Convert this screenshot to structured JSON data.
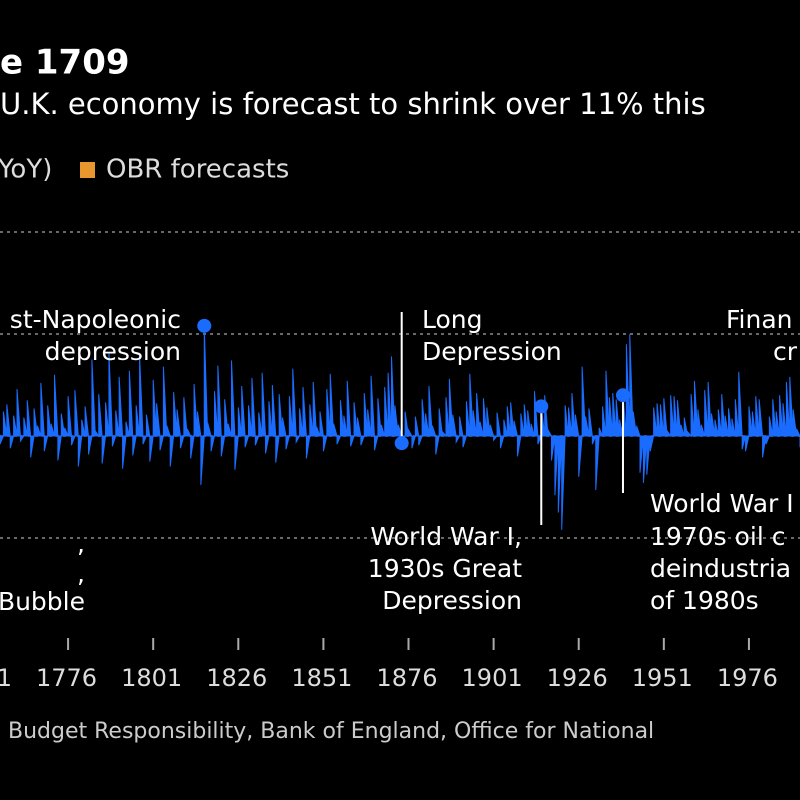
{
  "chart_data": {
    "type": "area",
    "title": "e 1709",
    "subtitle": "U.K. economy is forecast to shrink over 11% this",
    "source": "Budget Responsibility, Bank of England, Office for National",
    "legend": [
      {
        "name": "YoY)",
        "color": "#1a6cff"
      },
      {
        "name": "OBR forecasts",
        "color": "#e8962e"
      }
    ],
    "x": [
      1755,
      1756,
      1757,
      1758,
      1759,
      1760,
      1761,
      1762,
      1763,
      1764,
      1765,
      1766,
      1767,
      1768,
      1769,
      1770,
      1771,
      1772,
      1773,
      1774,
      1775,
      1776,
      1777,
      1778,
      1779,
      1780,
      1781,
      1782,
      1783,
      1784,
      1785,
      1786,
      1787,
      1788,
      1789,
      1790,
      1791,
      1792,
      1793,
      1794,
      1795,
      1796,
      1797,
      1798,
      1799,
      1800,
      1801,
      1802,
      1803,
      1804,
      1805,
      1806,
      1807,
      1808,
      1809,
      1810,
      1811,
      1812,
      1813,
      1814,
      1815,
      1816,
      1817,
      1818,
      1819,
      1820,
      1821,
      1822,
      1823,
      1824,
      1825,
      1826,
      1827,
      1828,
      1829,
      1830,
      1831,
      1832,
      1833,
      1834,
      1835,
      1836,
      1837,
      1838,
      1839,
      1840,
      1841,
      1842,
      1843,
      1844,
      1845,
      1846,
      1847,
      1848,
      1849,
      1850,
      1851,
      1852,
      1853,
      1854,
      1855,
      1856,
      1857,
      1858,
      1859,
      1860,
      1861,
      1862,
      1863,
      1864,
      1865,
      1866,
      1867,
      1868,
      1869,
      1870,
      1871,
      1872,
      1873,
      1874,
      1875,
      1876,
      1877,
      1878,
      1879,
      1880,
      1881,
      1882,
      1883,
      1884,
      1885,
      1886,
      1887,
      1888,
      1889,
      1890,
      1891,
      1892,
      1893,
      1894,
      1895,
      1896,
      1897,
      1898,
      1899,
      1900,
      1901,
      1902,
      1903,
      1904,
      1905,
      1906,
      1907,
      1908,
      1909,
      1910,
      1911,
      1912,
      1913,
      1914,
      1915,
      1916,
      1917,
      1918,
      1919,
      1920,
      1921,
      1922,
      1923,
      1924,
      1925,
      1926,
      1927,
      1928,
      1929,
      1930,
      1931,
      1932,
      1933,
      1934,
      1935,
      1936,
      1937,
      1938,
      1939,
      1940,
      1941,
      1942,
      1943,
      1944,
      1945,
      1946,
      1947,
      1948,
      1949,
      1950,
      1951,
      1952,
      1953,
      1954,
      1955,
      1956,
      1957,
      1958,
      1959,
      1960,
      1961,
      1962,
      1963,
      1964,
      1965,
      1966,
      1967,
      1968,
      1969,
      1970,
      1971,
      1972,
      1973,
      1974,
      1975,
      1976,
      1977,
      1978,
      1979,
      1980,
      1981,
      1982,
      1983,
      1984,
      1985,
      1986,
      1987,
      1988,
      1989,
      1990,
      1991
    ],
    "series": [
      {
        "name": "YoY)",
        "color": "#1a6cff",
        "values": [
          1.5,
          -0.8,
          2.4,
          3.1,
          -1.2,
          2.0,
          4.6,
          -0.5,
          1.8,
          3.5,
          -2.1,
          2.7,
          1.0,
          5.2,
          -1.5,
          3.0,
          1.2,
          6.0,
          -2.4,
          2.2,
          0.8,
          3.9,
          -0.9,
          4.5,
          -3.0,
          1.6,
          2.9,
          -1.8,
          7.5,
          0.5,
          4.1,
          -2.7,
          3.3,
          8.2,
          -1.0,
          2.5,
          5.8,
          -3.2,
          1.4,
          6.4,
          -1.9,
          3.0,
          7.9,
          -0.8,
          2.1,
          -2.5,
          5.5,
          3.2,
          -1.4,
          6.8,
          1.0,
          -3.0,
          4.3,
          2.6,
          -1.2,
          3.8,
          0.7,
          -2.2,
          5.1,
          2.4,
          -4.8,
          10.8,
          1.3,
          -1.5,
          4.4,
          6.9,
          -2.0,
          3.6,
          1.2,
          7.4,
          -3.3,
          2.8,
          4.9,
          -1.1,
          3.0,
          5.7,
          -0.9,
          2.3,
          6.2,
          -1.7,
          3.4,
          5.0,
          -2.6,
          4.1,
          1.8,
          -1.3,
          3.9,
          6.6,
          -0.6,
          2.7,
          4.8,
          -2.2,
          3.1,
          5.3,
          0.9,
          2.4,
          -1.5,
          4.6,
          6.1,
          1.2,
          -0.8,
          3.5,
          2.0,
          5.4,
          -1.0,
          3.3,
          1.8,
          -0.9,
          4.2,
          2.6,
          5.9,
          -1.4,
          3.7,
          1.1,
          4.8,
          6.2,
          7.8,
          3.0,
          1.1,
          -0.7,
          2.4,
          0.6,
          -1.2,
          1.9,
          -0.9,
          3.6,
          2.2,
          4.9,
          1.0,
          -1.8,
          2.7,
          0.4,
          3.8,
          5.6,
          2.1,
          -0.6,
          1.9,
          -1.1,
          3.4,
          6.1,
          2.5,
          4.2,
          1.4,
          3.7,
          2.8,
          1.1,
          -0.4,
          2.3,
          -1.2,
          1.6,
          2.9,
          3.3,
          1.5,
          -2.0,
          2.2,
          3.1,
          2.5,
          1.2,
          4.4,
          -0.8,
          2.9,
          4.0,
          0.6,
          -2.4,
          -5.8,
          -7.5,
          -9.2,
          3.0,
          2.8,
          4.2,
          2.1,
          -4.0,
          6.8,
          1.9,
          2.7,
          -0.8,
          -5.3,
          0.8,
          2.9,
          6.4,
          3.8,
          4.2,
          3.6,
          1.6,
          4.0,
          9.0,
          10.0,
          2.4,
          1.0,
          -3.6,
          -4.6,
          -3.8,
          -1.5,
          2.8,
          3.2,
          3.1,
          3.7,
          0.5,
          4.0,
          3.9,
          3.5,
          1.1,
          1.8,
          0.4,
          4.1,
          5.4,
          2.6,
          1.1,
          4.5,
          5.3,
          2.2,
          1.6,
          2.6,
          4.1,
          2.0,
          2.7,
          1.7,
          3.6,
          6.3,
          -1.3,
          -1.5,
          2.9,
          2.4,
          3.9,
          3.6,
          -2.1,
          -0.8,
          1.9,
          3.6,
          2.4,
          4.0,
          3.2,
          5.3,
          5.8,
          2.6,
          0.7,
          -1.1
        ]
      }
    ],
    "xlim": [
      1756,
      1991
    ],
    "ylim": [
      -15,
      20
    ],
    "xticks": [
      {
        "value": 1751,
        "label": "1"
      },
      1776,
      1801,
      1826,
      1851,
      1876,
      1901,
      1926,
      1951,
      1976
    ],
    "yticks": [
      -10,
      0,
      10,
      20
    ],
    "grid": true,
    "annotations": [
      {
        "lines": [
          ",",
          ",",
          "Bubble"
        ]
      },
      {
        "lines": [
          "st-Napoleonic",
          "depression"
        ],
        "x": 1816
      },
      {
        "lines": [
          "Long",
          "Depression"
        ],
        "x": 1874
      },
      {
        "lines": [
          "World War I,",
          "1930s Great",
          "Depression"
        ],
        "x": 1915
      },
      {
        "lines": [
          "World War I",
          "1970s oil c",
          "deindustria",
          "of 1980s"
        ],
        "x": 1939
      },
      {
        "lines": [
          "Finan",
          "cr"
        ]
      }
    ]
  }
}
